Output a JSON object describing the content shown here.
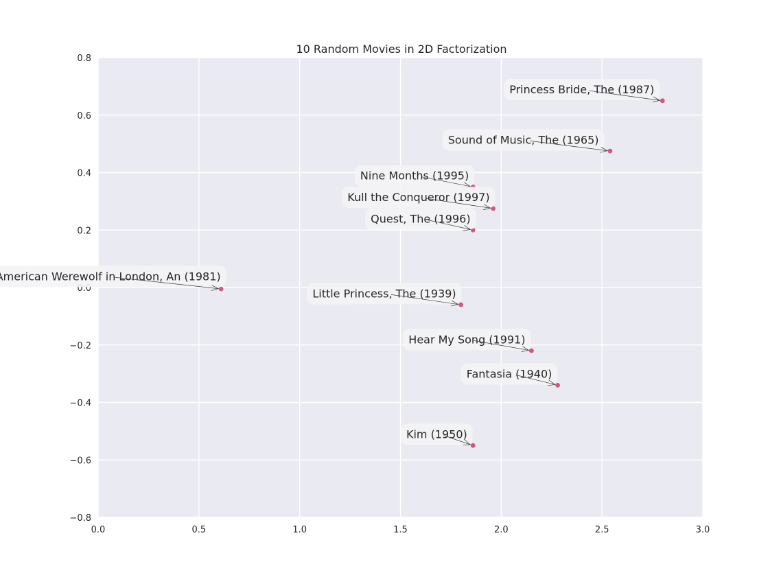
{
  "chart_data": {
    "type": "scatter",
    "title": "10 Random Movies in 2D Factorization",
    "xlabel": "",
    "ylabel": "",
    "xlim": [
      0.0,
      3.0
    ],
    "ylim": [
      -0.8,
      0.8
    ],
    "grid": true,
    "xticks": [
      0.0,
      0.5,
      1.0,
      1.5,
      2.0,
      2.5,
      3.0
    ],
    "xtick_labels": [
      "0.0",
      "0.5",
      "1.0",
      "1.5",
      "2.0",
      "2.5",
      "3.0"
    ],
    "yticks": [
      -0.8,
      -0.6,
      -0.4,
      -0.2,
      0.0,
      0.2,
      0.4,
      0.6,
      0.8
    ],
    "ytick_labels": [
      "−0.8",
      "−0.6",
      "−0.4",
      "−0.2",
      "0.0",
      "0.2",
      "0.4",
      "0.6",
      "0.8"
    ],
    "point_color": "#d0587e",
    "background_color": "#eaeaf2",
    "points": [
      {
        "label": "Princess Bride, The (1987)",
        "x": 2.8,
        "y": 0.65,
        "label_x": 2.4,
        "label_y": 0.69
      },
      {
        "label": "Sound of Music, The (1965)",
        "x": 2.54,
        "y": 0.475,
        "label_x": 2.11,
        "label_y": 0.515
      },
      {
        "label": "Nine Months (1995)",
        "x": 1.86,
        "y": 0.35,
        "label_x": 1.57,
        "label_y": 0.39
      },
      {
        "label": "Kull the Conqueror (1997)",
        "x": 1.96,
        "y": 0.275,
        "label_x": 1.59,
        "label_y": 0.315
      },
      {
        "label": "Quest, The (1996)",
        "x": 1.86,
        "y": 0.2,
        "label_x": 1.6,
        "label_y": 0.24
      },
      {
        "label": "American Werewolf in London, An (1981)",
        "x": 0.61,
        "y": -0.005,
        "label_x": 0.05,
        "label_y": 0.04
      },
      {
        "label": "Little Princess, The (1939)",
        "x": 1.8,
        "y": -0.06,
        "label_x": 1.42,
        "label_y": -0.02
      },
      {
        "label": "Hear My Song (1991)",
        "x": 2.15,
        "y": -0.22,
        "label_x": 1.83,
        "label_y": -0.18
      },
      {
        "label": "Fantasia (1940)",
        "x": 2.28,
        "y": -0.34,
        "label_x": 2.04,
        "label_y": -0.3
      },
      {
        "label": "Kim (1950)",
        "x": 1.86,
        "y": -0.55,
        "label_x": 1.68,
        "label_y": -0.51
      }
    ]
  }
}
